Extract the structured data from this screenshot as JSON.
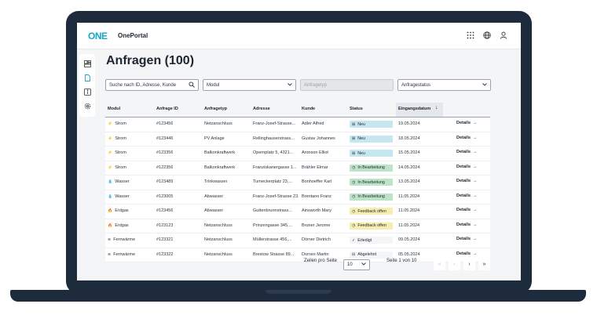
{
  "app": {
    "logo_text": "ONE",
    "name": "OnePortal",
    "brand_color": "#18a7c9"
  },
  "topbar": {
    "icons": [
      "apps-grid-icon",
      "globe-icon",
      "user-icon"
    ]
  },
  "sidebar": {
    "icons": [
      "dashboard-icon",
      "document-icon",
      "info-icon",
      "settings-icon"
    ],
    "active": "document-icon",
    "active_color": "#18a7c9"
  },
  "page": {
    "title": "Anfragen (100)"
  },
  "filters": {
    "search_placeholder": "Suche nach ID, Adresse, Kunde",
    "modul_label": "Modul",
    "anfragetyp_label": "Anfragetyp",
    "anfragestatus_label": "Anfragestatus"
  },
  "table": {
    "headers": [
      "Modul",
      "Anfrage ID",
      "Anfragetyp",
      "Adresse",
      "Kunde",
      "Status",
      "Eingangsdatum"
    ],
    "sort_icon": "↓",
    "details_label": "Details",
    "status_colors": {
      "Neu": "#c7e7f0",
      "In Bearbeitung": "#bfe3c7",
      "Feedback offen": "#f5eeb0",
      "Erledigt": "#f4f5f7",
      "Abgelehnt": "#f4f5f7"
    },
    "rows": [
      {
        "modul": "Strom",
        "icon": "⚡",
        "id": "#123456",
        "typ": "Netzanschluss",
        "adresse": "Franz-Josef-Strasse...",
        "kunde": "Adler Alfred",
        "status": "Neu",
        "status_icon": "⊞",
        "datum": "19.05.2024"
      },
      {
        "modul": "Strom",
        "icon": "⚡",
        "id": "#123446",
        "typ": "PV Anlage",
        "adresse": "Rellinghauserstrass...",
        "kunde": "Gustav Johannes",
        "status": "Neu",
        "status_icon": "⊞",
        "datum": "18.05.2024"
      },
      {
        "modul": "Strom",
        "icon": "⚡",
        "id": "#123356",
        "typ": "Balkonkraftwerk",
        "adresse": "Opernplatz 5, 4321...",
        "kunde": "Aronson Elliot",
        "status": "Neu",
        "status_icon": "⊞",
        "datum": "15.05.2024"
      },
      {
        "modul": "Strom",
        "icon": "⚡",
        "id": "#122356",
        "typ": "Balkonkraftwerk",
        "adresse": "Franziskanergasse 1...",
        "kunde": "Brähler Elmar",
        "status": "In Bearbeitung",
        "status_icon": "◷",
        "datum": "14.05.2024"
      },
      {
        "modul": "Wasser",
        "icon": "💧",
        "id": "#123489",
        "typ": "Trinkwasser",
        "adresse": "Turneckerplatz 23,...",
        "kunde": "Bonhoeffer Karl",
        "status": "In Bearbeitung",
        "status_icon": "◷",
        "datum": "13.05.2024"
      },
      {
        "modul": "Wasser",
        "icon": "💧",
        "id": "#123005",
        "typ": "Abwasser",
        "adresse": "Franz-Josef-Strasse 23...",
        "kunde": "Brentano Franz",
        "status": "In Bearbeitung",
        "status_icon": "◷",
        "datum": "11.05.2024"
      },
      {
        "modul": "Erdgas",
        "icon": "🔥",
        "id": "#123456",
        "typ": "Abwasser",
        "adresse": "Guttenbrunnstrass...",
        "kunde": "Ainsworth Mary",
        "status": "Feedback offen",
        "status_icon": "◷",
        "datum": "11.05.2024"
      },
      {
        "modul": "Erdgas",
        "icon": "🔥",
        "id": "#123123",
        "typ": "Netzanschluss",
        "adresse": "Prinzengasse 345,...",
        "kunde": "Bruner Jerome",
        "status": "Feedback offen",
        "status_icon": "◷",
        "datum": "11.05.2024"
      },
      {
        "modul": "Fernwärme",
        "icon": "≋",
        "id": "#123321",
        "typ": "Netzanschluss",
        "adresse": "Müllerstrasse 456,...",
        "kunde": "Dörner Dietrich",
        "status": "Erledigt",
        "status_icon": "✓",
        "datum": "09.05.2024"
      },
      {
        "modul": "Fernwärme",
        "icon": "≋",
        "id": "#123322",
        "typ": "Netzanschluss",
        "adresse": "Brestow Strasse 89...",
        "kunde": "Dornes Martin",
        "status": "Abgelehnt",
        "status_icon": "⊟",
        "datum": "05.05.2024"
      }
    ]
  },
  "pagination": {
    "rows_per_page_label": "Zeilen pro Seite",
    "rows_per_page_value": "10",
    "page_info": "Seite 1 von 10",
    "buttons": [
      "«",
      "‹",
      "›",
      "»"
    ]
  }
}
